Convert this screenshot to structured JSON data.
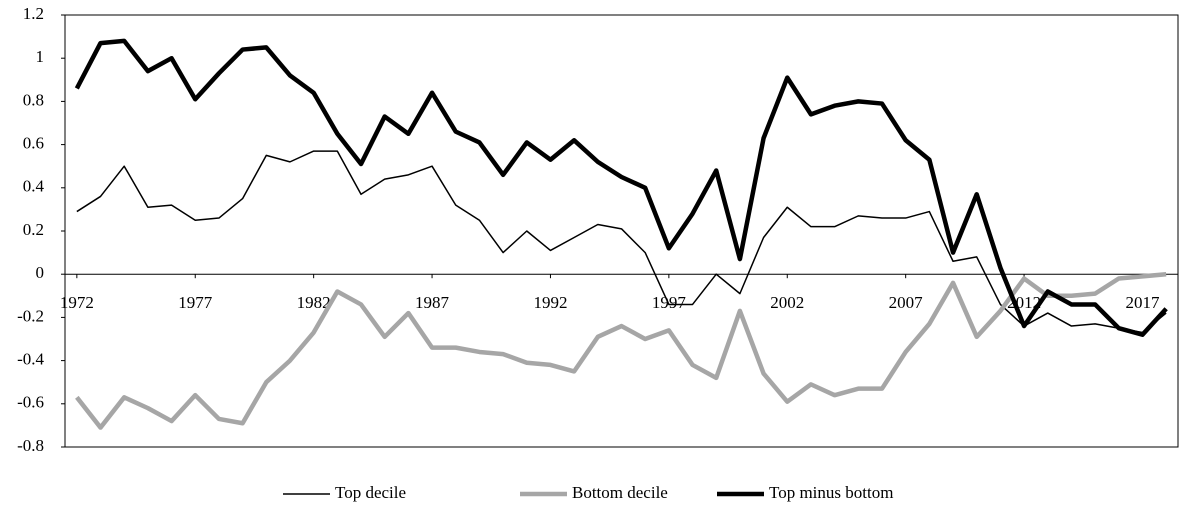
{
  "chart_data": {
    "type": "line",
    "x": [
      1972,
      1973,
      1974,
      1975,
      1976,
      1977,
      1978,
      1979,
      1980,
      1981,
      1982,
      1983,
      1984,
      1985,
      1986,
      1987,
      1988,
      1989,
      1990,
      1991,
      1992,
      1993,
      1994,
      1995,
      1996,
      1997,
      1998,
      1999,
      2000,
      2001,
      2002,
      2003,
      2004,
      2005,
      2006,
      2007,
      2008,
      2009,
      2010,
      2011,
      2012,
      2013,
      2014,
      2015,
      2016,
      2017,
      2018
    ],
    "xlim": [
      1971.5,
      2018.5
    ],
    "xticks": [
      1972,
      1977,
      1982,
      1987,
      1992,
      1997,
      2002,
      2007,
      2012,
      2017
    ],
    "ylim": [
      -0.8,
      1.2
    ],
    "yticks": [
      -0.8,
      -0.6,
      -0.4,
      -0.2,
      0,
      0.2,
      0.4,
      0.6,
      0.8,
      1,
      1.2
    ],
    "series": [
      {
        "name": "Top decile",
        "color": "#000000",
        "values": [
          0.29,
          0.36,
          0.5,
          0.31,
          0.32,
          0.25,
          0.26,
          0.35,
          0.55,
          0.52,
          0.57,
          0.57,
          0.37,
          0.44,
          0.46,
          0.5,
          0.32,
          0.25,
          0.1,
          0.2,
          0.11,
          0.17,
          0.23,
          0.21,
          0.1,
          -0.14,
          -0.14,
          0.0,
          -0.09,
          0.17,
          0.31,
          0.22,
          0.22,
          0.27,
          0.26,
          0.26,
          0.29,
          0.06,
          0.08,
          -0.14,
          -0.24,
          -0.18,
          -0.24,
          -0.23,
          -0.25,
          -0.27,
          -0.18
        ]
      },
      {
        "name": "Bottom decile",
        "color": "#a6a6a6",
        "values": [
          -0.57,
          -0.71,
          -0.57,
          -0.62,
          -0.68,
          -0.56,
          -0.67,
          -0.69,
          -0.5,
          -0.4,
          -0.27,
          -0.08,
          -0.14,
          -0.29,
          -0.18,
          -0.34,
          -0.34,
          -0.36,
          -0.37,
          -0.41,
          -0.42,
          -0.45,
          -0.29,
          -0.24,
          -0.3,
          -0.26,
          -0.42,
          -0.48,
          -0.17,
          -0.46,
          -0.59,
          -0.51,
          -0.56,
          -0.53,
          -0.53,
          -0.36,
          -0.23,
          -0.04,
          -0.29,
          -0.17,
          -0.02,
          -0.1,
          -0.1,
          -0.09,
          -0.02,
          -0.01,
          0.0
        ]
      },
      {
        "name": "Top minus bottom",
        "color": "#000000",
        "values": [
          0.86,
          1.07,
          1.08,
          0.94,
          1.0,
          0.81,
          0.93,
          1.04,
          1.05,
          0.92,
          0.84,
          0.65,
          0.51,
          0.73,
          0.65,
          0.84,
          0.66,
          0.61,
          0.46,
          0.61,
          0.53,
          0.62,
          0.52,
          0.45,
          0.4,
          0.12,
          0.28,
          0.48,
          0.07,
          0.63,
          0.91,
          0.74,
          0.78,
          0.8,
          0.79,
          0.62,
          0.53,
          0.1,
          0.37,
          0.03,
          -0.24,
          -0.08,
          -0.14,
          -0.14,
          -0.25,
          -0.28,
          -0.16
        ]
      }
    ]
  }
}
